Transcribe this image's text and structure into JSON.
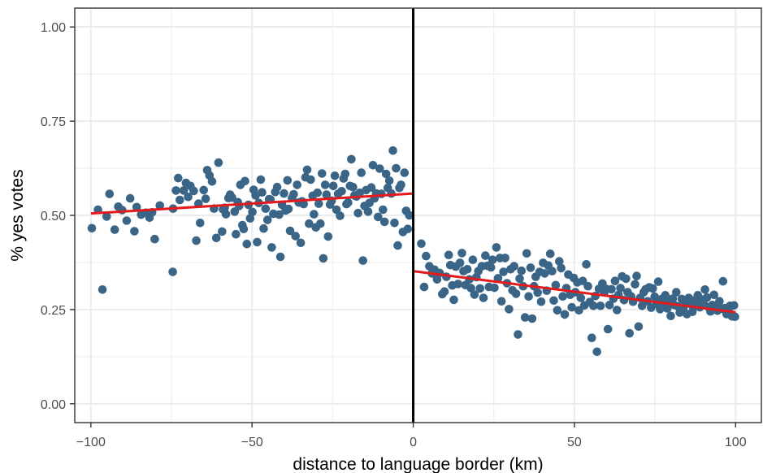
{
  "chart_data": {
    "type": "scatter",
    "title": "",
    "xlabel": "distance to language border (km)",
    "ylabel": "% yes votes",
    "xlim": [
      -105,
      108
    ],
    "ylim": [
      -0.05,
      1.05
    ],
    "x_ticks": [
      -100,
      -50,
      0,
      50,
      100
    ],
    "x_tick_labels": [
      "−100",
      "−50",
      "0",
      "50",
      "100"
    ],
    "y_ticks": [
      0,
      0.25,
      0.5,
      0.75,
      1
    ],
    "y_tick_labels": [
      "0.00",
      "0.25",
      "0.50",
      "0.75",
      "1.00"
    ],
    "grid": true,
    "legend": "none",
    "colors": {
      "points": "#3a6587",
      "fit": "#e41a1c",
      "border": "#000000",
      "grid": "#ebebeb",
      "frame": "#333333"
    },
    "vline_x": 0,
    "fit_lines": [
      {
        "x": [
          -100,
          0
        ],
        "y": [
          0.505,
          0.558
        ]
      },
      {
        "x": [
          0,
          100
        ],
        "y": [
          0.352,
          0.243
        ]
      }
    ],
    "points": [
      [
        -99.7,
        0.466
      ],
      [
        -97.8,
        0.515
      ],
      [
        -96.4,
        0.303
      ],
      [
        -95.1,
        0.497
      ],
      [
        -94.2,
        0.557
      ],
      [
        -92.6,
        0.462
      ],
      [
        -91.5,
        0.523
      ],
      [
        -90.3,
        0.514
      ],
      [
        -88.9,
        0.486
      ],
      [
        -87.8,
        0.545
      ],
      [
        -86.5,
        0.458
      ],
      [
        -85.8,
        0.522
      ],
      [
        -84.4,
        0.502
      ],
      [
        -83.0,
        0.507
      ],
      [
        -81.8,
        0.494
      ],
      [
        -81.0,
        0.508
      ],
      [
        -80.2,
        0.437
      ],
      [
        -78.6,
        0.526
      ],
      [
        -74.6,
        0.35
      ],
      [
        -74.5,
        0.518
      ],
      [
        -73.6,
        0.566
      ],
      [
        -72.9,
        0.599
      ],
      [
        -72.4,
        0.541
      ],
      [
        -71.2,
        0.566
      ],
      [
        -70.5,
        0.586
      ],
      [
        -69.8,
        0.549
      ],
      [
        -69.1,
        0.578
      ],
      [
        -68.1,
        0.565
      ],
      [
        -67.3,
        0.433
      ],
      [
        -66.6,
        0.531
      ],
      [
        -66.1,
        0.48
      ],
      [
        -65.0,
        0.567
      ],
      [
        -64.4,
        0.544
      ],
      [
        -63.9,
        0.62
      ],
      [
        -63.2,
        0.606
      ],
      [
        -62.4,
        0.59
      ],
      [
        -61.8,
        0.518
      ],
      [
        -61.1,
        0.44
      ],
      [
        -60.4,
        0.64
      ],
      [
        -59.3,
        0.457
      ],
      [
        -59.0,
        0.516
      ],
      [
        -58.5,
        0.52
      ],
      [
        -58.1,
        0.503
      ],
      [
        -57.3,
        0.546
      ],
      [
        -56.8,
        0.555
      ],
      [
        -56.2,
        0.547
      ],
      [
        -55.4,
        0.51
      ],
      [
        -55.0,
        0.45
      ],
      [
        -54.4,
        0.535
      ],
      [
        -54.0,
        0.525
      ],
      [
        -53.6,
        0.581
      ],
      [
        -53.0,
        0.474
      ],
      [
        -52.6,
        0.464
      ],
      [
        -52.2,
        0.591
      ],
      [
        -51.6,
        0.424
      ],
      [
        -51.1,
        0.528
      ],
      [
        -50.6,
        0.492
      ],
      [
        -49.9,
        0.509
      ],
      [
        -49.5,
        0.568
      ],
      [
        -48.9,
        0.553
      ],
      [
        -48.4,
        0.429
      ],
      [
        -47.9,
        0.533
      ],
      [
        -47.3,
        0.595
      ],
      [
        -46.9,
        0.561
      ],
      [
        -46.4,
        0.465
      ],
      [
        -45.8,
        0.518
      ],
      [
        -45.2,
        0.488
      ],
      [
        -44.7,
        0.543
      ],
      [
        -44.3,
        0.542
      ],
      [
        -43.9,
        0.415
      ],
      [
        -43.4,
        0.504
      ],
      [
        -42.8,
        0.562
      ],
      [
        -42.2,
        0.575
      ],
      [
        -41.6,
        0.502
      ],
      [
        -41.2,
        0.39
      ],
      [
        -40.7,
        0.528
      ],
      [
        -40.1,
        0.558
      ],
      [
        -39.6,
        0.513
      ],
      [
        -39.0,
        0.593
      ],
      [
        -38.7,
        0.517
      ],
      [
        -38.2,
        0.459
      ],
      [
        -37.6,
        0.546
      ],
      [
        -37.1,
        0.556
      ],
      [
        -36.5,
        0.445
      ],
      [
        -36.0,
        0.581
      ],
      [
        -35.5,
        0.534
      ],
      [
        -34.9,
        0.427
      ],
      [
        -34.5,
        0.537
      ],
      [
        -34.0,
        0.53
      ],
      [
        -33.4,
        0.601
      ],
      [
        -32.9,
        0.621
      ],
      [
        -32.3,
        0.478
      ],
      [
        -31.8,
        0.595
      ],
      [
        -31.2,
        0.552
      ],
      [
        -30.8,
        0.503
      ],
      [
        -30.2,
        0.468
      ],
      [
        -29.7,
        0.56
      ],
      [
        -29.3,
        0.531
      ],
      [
        -28.8,
        0.478
      ],
      [
        -28.3,
        0.611
      ],
      [
        -27.9,
        0.386
      ],
      [
        -27.3,
        0.581
      ],
      [
        -26.9,
        0.555
      ],
      [
        -26.4,
        0.444
      ],
      [
        -25.8,
        0.529
      ],
      [
        -25.3,
        0.539
      ],
      [
        -24.8,
        0.578
      ],
      [
        -24.3,
        0.605
      ],
      [
        -23.8,
        0.515
      ],
      [
        -23.3,
        0.557
      ],
      [
        -22.7,
        0.499
      ],
      [
        -22.2,
        0.564
      ],
      [
        -21.6,
        0.598
      ],
      [
        -21.1,
        0.61
      ],
      [
        -20.7,
        0.53
      ],
      [
        -20.2,
        0.534
      ],
      [
        -19.6,
        0.578
      ],
      [
        -19.2,
        0.649
      ],
      [
        -18.7,
        0.575
      ],
      [
        -18.2,
        0.553
      ],
      [
        -17.6,
        0.55
      ],
      [
        -17.1,
        0.506
      ],
      [
        -16.6,
        0.56
      ],
      [
        -16.1,
        0.613
      ],
      [
        -15.6,
        0.38
      ],
      [
        -15.1,
        0.525
      ],
      [
        -14.6,
        0.567
      ],
      [
        -14.0,
        0.51
      ],
      [
        -13.6,
        0.533
      ],
      [
        -13.0,
        0.574
      ],
      [
        -12.5,
        0.633
      ],
      [
        -12.0,
        0.545
      ],
      [
        -11.5,
        0.558
      ],
      [
        -10.9,
        0.496
      ],
      [
        -10.4,
        0.624
      ],
      [
        -9.9,
        0.557
      ],
      [
        -9.4,
        0.515
      ],
      [
        -8.9,
        0.483
      ],
      [
        -8.4,
        0.61
      ],
      [
        -7.9,
        0.573
      ],
      [
        -7.4,
        0.592
      ],
      [
        -6.8,
        0.558
      ],
      [
        -6.3,
        0.672
      ],
      [
        -5.8,
        0.48
      ],
      [
        -5.3,
        0.625
      ],
      [
        -4.8,
        0.42
      ],
      [
        -4.3,
        0.573
      ],
      [
        -3.8,
        0.581
      ],
      [
        -3.2,
        0.456
      ],
      [
        -2.7,
        0.613
      ],
      [
        -2.2,
        0.512
      ],
      [
        -1.7,
        0.464
      ],
      [
        -1.2,
        0.5
      ],
      [
        2.5,
        0.425
      ],
      [
        3.4,
        0.31
      ],
      [
        4.0,
        0.392
      ],
      [
        5.0,
        0.365
      ],
      [
        5.8,
        0.346
      ],
      [
        6.6,
        0.356
      ],
      [
        7.4,
        0.33
      ],
      [
        8.2,
        0.347
      ],
      [
        9.0,
        0.291
      ],
      [
        9.7,
        0.298
      ],
      [
        10.3,
        0.337
      ],
      [
        11.0,
        0.395
      ],
      [
        11.5,
        0.368
      ],
      [
        12.1,
        0.314
      ],
      [
        12.6,
        0.276
      ],
      [
        13.2,
        0.364
      ],
      [
        13.9,
        0.318
      ],
      [
        14.5,
        0.374
      ],
      [
        15.1,
        0.4
      ],
      [
        15.6,
        0.352
      ],
      [
        16.2,
        0.315
      ],
      [
        16.8,
        0.357
      ],
      [
        17.4,
        0.33
      ],
      [
        17.9,
        0.307
      ],
      [
        18.5,
        0.382
      ],
      [
        19.0,
        0.29
      ],
      [
        19.6,
        0.336
      ],
      [
        20.2,
        0.352
      ],
      [
        20.7,
        0.306
      ],
      [
        21.3,
        0.365
      ],
      [
        21.8,
        0.281
      ],
      [
        22.4,
        0.393
      ],
      [
        23.0,
        0.366
      ],
      [
        23.5,
        0.31
      ],
      [
        24.1,
        0.362
      ],
      [
        24.6,
        0.382
      ],
      [
        25.2,
        0.308
      ],
      [
        25.8,
        0.415
      ],
      [
        26.3,
        0.333
      ],
      [
        26.9,
        0.387
      ],
      [
        27.4,
        0.272
      ],
      [
        28.0,
        0.35
      ],
      [
        28.5,
        0.387
      ],
      [
        29.1,
        0.32
      ],
      [
        29.7,
        0.251
      ],
      [
        30.2,
        0.357
      ],
      [
        30.8,
        0.301
      ],
      [
        31.3,
        0.365
      ],
      [
        31.9,
        0.292
      ],
      [
        32.5,
        0.184
      ],
      [
        33.0,
        0.332
      ],
      [
        33.6,
        0.353
      ],
      [
        34.1,
        0.312
      ],
      [
        34.7,
        0.229
      ],
      [
        35.2,
        0.399
      ],
      [
        35.8,
        0.285
      ],
      [
        36.4,
        0.361
      ],
      [
        36.9,
        0.226
      ],
      [
        37.5,
        0.312
      ],
      [
        38.0,
        0.337
      ],
      [
        38.6,
        0.295
      ],
      [
        39.2,
        0.35
      ],
      [
        39.7,
        0.271
      ],
      [
        40.3,
        0.374
      ],
      [
        40.8,
        0.346
      ],
      [
        41.4,
        0.3
      ],
      [
        41.9,
        0.367
      ],
      [
        42.5,
        0.398
      ],
      [
        43.1,
        0.352
      ],
      [
        43.6,
        0.274
      ],
      [
        44.2,
        0.315
      ],
      [
        44.7,
        0.248
      ],
      [
        45.3,
        0.378
      ],
      [
        45.9,
        0.36
      ],
      [
        46.4,
        0.285
      ],
      [
        47.0,
        0.237
      ],
      [
        47.5,
        0.307
      ],
      [
        48.1,
        0.343
      ],
      [
        48.7,
        0.289
      ],
      [
        49.2,
        0.256
      ],
      [
        49.8,
        0.334
      ],
      [
        50.3,
        0.296
      ],
      [
        50.9,
        0.322
      ],
      [
        51.4,
        0.248
      ],
      [
        52.0,
        0.281
      ],
      [
        52.6,
        0.326
      ],
      [
        53.1,
        0.261
      ],
      [
        53.7,
        0.37
      ],
      [
        54.2,
        0.312
      ],
      [
        54.8,
        0.27
      ],
      [
        55.4,
        0.175
      ],
      [
        55.9,
        0.26
      ],
      [
        56.5,
        0.286
      ],
      [
        57.0,
        0.138
      ],
      [
        57.6,
        0.305
      ],
      [
        58.1,
        0.26
      ],
      [
        58.7,
        0.319
      ],
      [
        59.3,
        0.296
      ],
      [
        59.8,
        0.305
      ],
      [
        60.4,
        0.198
      ],
      [
        60.9,
        0.262
      ],
      [
        61.5,
        0.304
      ],
      [
        62.1,
        0.279
      ],
      [
        62.6,
        0.326
      ],
      [
        63.2,
        0.249
      ],
      [
        63.7,
        0.289
      ],
      [
        64.3,
        0.307
      ],
      [
        64.8,
        0.338
      ],
      [
        65.4,
        0.275
      ],
      [
        66.0,
        0.332
      ],
      [
        66.5,
        0.296
      ],
      [
        67.1,
        0.187
      ],
      [
        67.6,
        0.285
      ],
      [
        68.2,
        0.271
      ],
      [
        68.8,
        0.317
      ],
      [
        69.3,
        0.339
      ],
      [
        69.9,
        0.205
      ],
      [
        70.4,
        0.281
      ],
      [
        71.0,
        0.26
      ],
      [
        71.5,
        0.296
      ],
      [
        72.1,
        0.304
      ],
      [
        72.7,
        0.272
      ],
      [
        73.2,
        0.309
      ],
      [
        73.8,
        0.255
      ],
      [
        74.3,
        0.306
      ],
      [
        74.9,
        0.284
      ],
      [
        75.5,
        0.265
      ],
      [
        76.0,
        0.324
      ],
      [
        76.6,
        0.251
      ],
      [
        77.1,
        0.278
      ],
      [
        77.7,
        0.262
      ],
      [
        78.2,
        0.288
      ],
      [
        78.8,
        0.253
      ],
      [
        79.4,
        0.276
      ],
      [
        79.9,
        0.233
      ],
      [
        80.5,
        0.279
      ],
      [
        81.0,
        0.262
      ],
      [
        81.6,
        0.296
      ],
      [
        82.2,
        0.258
      ],
      [
        82.7,
        0.242
      ],
      [
        83.3,
        0.278
      ],
      [
        83.8,
        0.253
      ],
      [
        84.4,
        0.265
      ],
      [
        84.9,
        0.238
      ],
      [
        85.5,
        0.281
      ],
      [
        86.1,
        0.264
      ],
      [
        86.6,
        0.244
      ],
      [
        87.2,
        0.274
      ],
      [
        87.7,
        0.26
      ],
      [
        88.3,
        0.288
      ],
      [
        88.9,
        0.256
      ],
      [
        89.4,
        0.277
      ],
      [
        90.0,
        0.268
      ],
      [
        90.5,
        0.303
      ],
      [
        91.1,
        0.282
      ],
      [
        91.6,
        0.257
      ],
      [
        92.2,
        0.245
      ],
      [
        92.8,
        0.262
      ],
      [
        93.3,
        0.289
      ],
      [
        93.9,
        0.258
      ],
      [
        94.4,
        0.247
      ],
      [
        95.0,
        0.272
      ],
      [
        95.6,
        0.252
      ],
      [
        96.1,
        0.325
      ],
      [
        96.7,
        0.254
      ],
      [
        97.2,
        0.238
      ],
      [
        97.8,
        0.248
      ],
      [
        98.3,
        0.26
      ],
      [
        98.9,
        0.232
      ],
      [
        99.5,
        0.261
      ],
      [
        99.8,
        0.231
      ]
    ]
  }
}
